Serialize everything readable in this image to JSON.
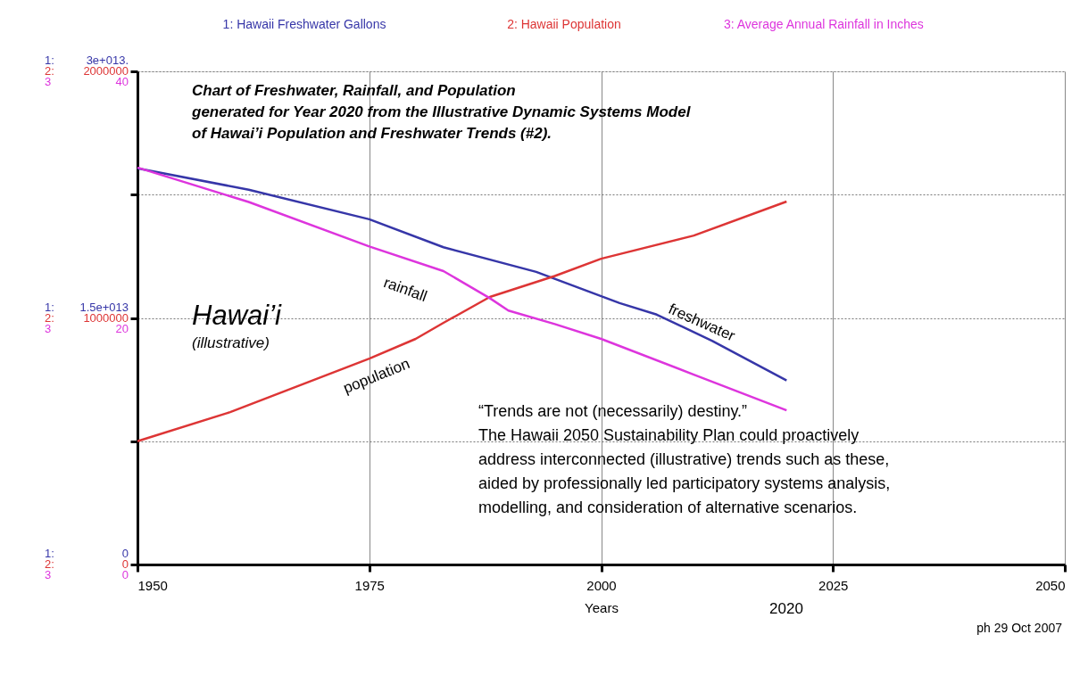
{
  "chart_data": {
    "type": "line",
    "title": "Chart of Freshwater, Rainfall, and Population\ngenerated for Year 2020 from the Illustrative Dynamic Systems Model\nof Hawai’i Population and Freshwater Trends (#2).",
    "xlabel": "Years",
    "xlim": [
      1950,
      2050
    ],
    "xticks": [
      1950,
      1975,
      2000,
      2025,
      2050
    ],
    "ylim": [
      0,
      30000000000000
    ],
    "yticks": [
      0,
      {
        "value": 7500000000000,
        "label": null
      },
      {
        "value": 15000000000000,
        "label": "1.5e+013"
      },
      {
        "value": 22500000000000,
        "label": null
      },
      {
        "value": 30000000000000,
        "label": "3e+013."
      }
    ],
    "y2lim": [
      0,
      2000000
    ],
    "y2ticks": [
      0,
      1000000,
      2000000
    ],
    "y3lim": [
      0,
      40
    ],
    "y3ticks": [
      0,
      20,
      40
    ],
    "grid": true,
    "legend": "top",
    "series": [
      {
        "name": "1: Hawaii Freshwater Gallons",
        "color": "#3636a8",
        "x": [
          1950,
          1962,
          1975,
          1983,
          1993,
          2002,
          2006,
          2012,
          2020
        ],
        "values": [
          24100000000000,
          22800000000000,
          21000000000000,
          19300000000000,
          17800000000000,
          15900000000000,
          15200000000000,
          13600000000000,
          11200000000000
        ]
      },
      {
        "name": "2: Hawaii Population",
        "color": "#dd3535",
        "axis": "y2",
        "x": [
          1950,
          1960,
          1975,
          1980,
          1983,
          1988,
          1995,
          2000,
          2010,
          2020
        ],
        "values": [
          500000,
          618000,
          835000,
          915000,
          980000,
          1085000,
          1170000,
          1240000,
          1334000,
          1472000
        ]
      },
      {
        "name": "3: Average Annual Rainfall in Inches",
        "color": "#dd35dd",
        "axis": "y3",
        "x": [
          1950,
          1962,
          1975,
          1983,
          1988,
          1990,
          1995,
          2000,
          2010,
          2020
        ],
        "values": [
          32.2,
          29.4,
          25.8,
          23.8,
          21.6,
          20.6,
          19.5,
          18.3,
          15.4,
          12.5
        ]
      }
    ],
    "annotations": [
      "Hawai’i",
      "(illustrative)",
      "rainfall",
      "freshwater",
      "population",
      "“Trends are not (necessarily) destiny.”",
      "The Hawaii 2050 Sustainability Plan could proactively",
      "address interconnected (illustrative) trends such as these,",
      "aided by professionally led participatory systems analysis,",
      "modelling, and consideration of alternative scenarios.",
      "ph 29 Oct 2007",
      "2020",
      "1:",
      "2:",
      "3",
      "1:",
      "2:",
      "3",
      "1:",
      "2:",
      "3"
    ]
  }
}
